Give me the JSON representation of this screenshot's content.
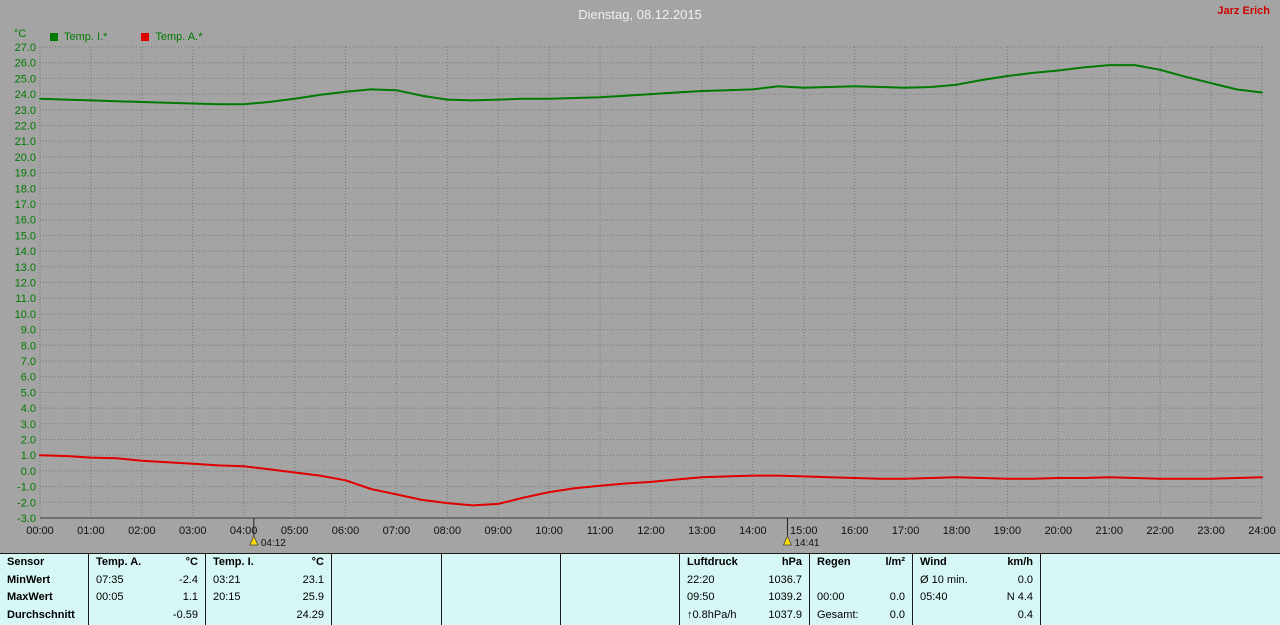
{
  "window": {
    "title": "Dienstag, 08.12.2015",
    "user": "Jarz Erich"
  },
  "colors": {
    "axis_text_green": "#007a00",
    "x_tick_black": "#111111",
    "user_name_red": "#cc0000",
    "table_bg_cyan": "#d7f6f6",
    "grid_gray": "#787878",
    "marker_yellow": "#ffdf00"
  },
  "legend": {
    "series": [
      {
        "label": "Temp. I.*",
        "color": "#007a00"
      },
      {
        "label": "Temp. A.*",
        "color": "#e00000"
      }
    ]
  },
  "chart_data": {
    "type": "line",
    "title": "Dienstag, 08.12.2015",
    "ylabel": "°C",
    "ylim": [
      -3,
      27
    ],
    "ytick_step": 1,
    "xlim_hours": [
      0,
      24
    ],
    "grid": true,
    "legend_position": "top-left",
    "xticks": [
      "00:00",
      "01:00",
      "02:00",
      "03:00",
      "04:00",
      "05:00",
      "06:00",
      "07:00",
      "08:00",
      "09:00",
      "10:00",
      "11:00",
      "12:00",
      "13:00",
      "14:00",
      "15:00",
      "16:00",
      "17:00",
      "18:00",
      "19:00",
      "20:00",
      "21:00",
      "22:00",
      "23:00",
      "24:00"
    ],
    "series": [
      {
        "name": "Temp. I.*",
        "color": "#007a00",
        "points": [
          [
            0,
            23.7
          ],
          [
            0.5,
            23.65
          ],
          [
            1,
            23.6
          ],
          [
            1.5,
            23.55
          ],
          [
            2,
            23.5
          ],
          [
            2.5,
            23.45
          ],
          [
            3,
            23.4
          ],
          [
            3.5,
            23.35
          ],
          [
            4,
            23.35
          ],
          [
            4.5,
            23.5
          ],
          [
            5,
            23.7
          ],
          [
            5.5,
            23.95
          ],
          [
            6,
            24.15
          ],
          [
            6.5,
            24.3
          ],
          [
            7,
            24.25
          ],
          [
            7.5,
            23.9
          ],
          [
            8,
            23.65
          ],
          [
            8.5,
            23.6
          ],
          [
            9,
            23.65
          ],
          [
            9.5,
            23.7
          ],
          [
            10,
            23.7
          ],
          [
            10.5,
            23.75
          ],
          [
            11,
            23.8
          ],
          [
            11.5,
            23.9
          ],
          [
            12,
            24.0
          ],
          [
            12.5,
            24.1
          ],
          [
            13,
            24.2
          ],
          [
            13.5,
            24.25
          ],
          [
            14,
            24.3
          ],
          [
            14.5,
            24.5
          ],
          [
            15,
            24.4
          ],
          [
            15.5,
            24.45
          ],
          [
            16,
            24.5
          ],
          [
            16.5,
            24.45
          ],
          [
            17,
            24.4
          ],
          [
            17.5,
            24.45
          ],
          [
            18,
            24.6
          ],
          [
            18.5,
            24.9
          ],
          [
            19,
            25.15
          ],
          [
            19.5,
            25.35
          ],
          [
            20,
            25.5
          ],
          [
            20.5,
            25.7
          ],
          [
            21,
            25.85
          ],
          [
            21.5,
            25.85
          ],
          [
            22,
            25.55
          ],
          [
            22.5,
            25.1
          ],
          [
            23,
            24.7
          ],
          [
            23.5,
            24.3
          ],
          [
            24,
            24.1
          ]
        ]
      },
      {
        "name": "Temp. A.*",
        "color": "#e00000",
        "points": [
          [
            0,
            1.0
          ],
          [
            0.5,
            0.95
          ],
          [
            1,
            0.85
          ],
          [
            1.5,
            0.8
          ],
          [
            2,
            0.65
          ],
          [
            2.5,
            0.55
          ],
          [
            3,
            0.45
          ],
          [
            3.5,
            0.35
          ],
          [
            4,
            0.3
          ],
          [
            4.5,
            0.1
          ],
          [
            5,
            -0.1
          ],
          [
            5.5,
            -0.3
          ],
          [
            6,
            -0.6
          ],
          [
            6.5,
            -1.15
          ],
          [
            7,
            -1.5
          ],
          [
            7.5,
            -1.85
          ],
          [
            8,
            -2.05
          ],
          [
            8.5,
            -2.2
          ],
          [
            9,
            -2.1
          ],
          [
            9.5,
            -1.7
          ],
          [
            10,
            -1.35
          ],
          [
            10.5,
            -1.1
          ],
          [
            11,
            -0.95
          ],
          [
            11.5,
            -0.8
          ],
          [
            12,
            -0.7
          ],
          [
            12.5,
            -0.55
          ],
          [
            13,
            -0.4
          ],
          [
            13.5,
            -0.35
          ],
          [
            14,
            -0.3
          ],
          [
            14.5,
            -0.3
          ],
          [
            15,
            -0.35
          ],
          [
            15.5,
            -0.4
          ],
          [
            16,
            -0.45
          ],
          [
            16.5,
            -0.5
          ],
          [
            17,
            -0.5
          ],
          [
            17.5,
            -0.45
          ],
          [
            18,
            -0.4
          ],
          [
            18.5,
            -0.45
          ],
          [
            19,
            -0.5
          ],
          [
            19.5,
            -0.5
          ],
          [
            20,
            -0.45
          ],
          [
            20.5,
            -0.45
          ],
          [
            21,
            -0.4
          ],
          [
            21.5,
            -0.45
          ],
          [
            22,
            -0.5
          ],
          [
            22.5,
            -0.5
          ],
          [
            23,
            -0.5
          ],
          [
            23.5,
            -0.45
          ],
          [
            24,
            -0.4
          ]
        ]
      }
    ],
    "markers": [
      {
        "label": "04:12",
        "hour": 4.2
      },
      {
        "label": "14:41",
        "hour": 14.68
      }
    ]
  },
  "table": {
    "row_labels": [
      "Sensor",
      "MinWert",
      "MaxWert",
      "Durchschnitt"
    ],
    "groups": [
      {
        "header": "Temp. A.",
        "unit": "°C",
        "rows": [
          [
            "07:35",
            "-2.4"
          ],
          [
            "00:05",
            "1.1"
          ],
          [
            "",
            "-0.59"
          ]
        ]
      },
      {
        "header": "Temp. I.",
        "unit": "°C",
        "rows": [
          [
            "03:21",
            "23.1"
          ],
          [
            "20:15",
            "25.9"
          ],
          [
            "",
            "24.29"
          ]
        ]
      },
      {
        "header": "",
        "unit": "",
        "rows": [
          [
            "",
            ""
          ],
          [
            "",
            ""
          ],
          [
            "",
            ""
          ]
        ]
      },
      {
        "header": "",
        "unit": "",
        "rows": [
          [
            "",
            ""
          ],
          [
            "",
            ""
          ],
          [
            "",
            ""
          ]
        ]
      },
      {
        "header": "",
        "unit": "",
        "rows": [
          [
            "",
            ""
          ],
          [
            "",
            ""
          ],
          [
            "",
            ""
          ]
        ]
      },
      {
        "header": "Luftdruck",
        "unit": "hPa",
        "rows": [
          [
            "22:20",
            "1036.7"
          ],
          [
            "09:50",
            "1039.2"
          ],
          [
            "↑0.8hPa/h",
            "1037.9"
          ]
        ]
      },
      {
        "header": "Regen",
        "unit": "l/m²",
        "rows": [
          [
            "",
            ""
          ],
          [
            "00:00",
            "0.0"
          ],
          [
            "Gesamt:",
            "0.0"
          ]
        ]
      },
      {
        "header": "Wind",
        "unit": "km/h",
        "rows": [
          [
            "Ø 10 min.",
            "0.0"
          ],
          [
            "05:40",
            "N 4.4"
          ],
          [
            "",
            "0.4"
          ]
        ]
      }
    ]
  }
}
